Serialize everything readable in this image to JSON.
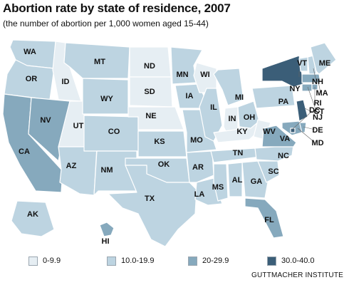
{
  "header": {
    "title": "Abortion rate by state of residence, 2007",
    "subtitle": "(the number of abortion per 1,000 women aged 15-44)"
  },
  "legend": [
    {
      "label": "0-9.9",
      "color": "#e6eef3"
    },
    {
      "label": "10.0-19.9",
      "color": "#bdd4e1"
    },
    {
      "label": "20-29.9",
      "color": "#86a9bd"
    },
    {
      "label": "30.0-40.0",
      "color": "#3b5e78"
    }
  ],
  "source": "GUTTMACHER INSTITUTE",
  "states": [
    {
      "code": "WA",
      "bin": 1
    },
    {
      "code": "OR",
      "bin": 1
    },
    {
      "code": "CA",
      "bin": 2
    },
    {
      "code": "NV",
      "bin": 2
    },
    {
      "code": "ID",
      "bin": 0
    },
    {
      "code": "UT",
      "bin": 0
    },
    {
      "code": "AZ",
      "bin": 1
    },
    {
      "code": "MT",
      "bin": 1
    },
    {
      "code": "WY",
      "bin": 1
    },
    {
      "code": "CO",
      "bin": 1
    },
    {
      "code": "NM",
      "bin": 1
    },
    {
      "code": "ND",
      "bin": 0
    },
    {
      "code": "SD",
      "bin": 0
    },
    {
      "code": "NE",
      "bin": 0
    },
    {
      "code": "KS",
      "bin": 1
    },
    {
      "code": "OK",
      "bin": 1
    },
    {
      "code": "TX",
      "bin": 1
    },
    {
      "code": "MN",
      "bin": 1
    },
    {
      "code": "IA",
      "bin": 1
    },
    {
      "code": "MO",
      "bin": 1
    },
    {
      "code": "AR",
      "bin": 1
    },
    {
      "code": "LA",
      "bin": 1
    },
    {
      "code": "WI",
      "bin": 0
    },
    {
      "code": "IL",
      "bin": 1
    },
    {
      "code": "MS",
      "bin": 1
    },
    {
      "code": "MI",
      "bin": 1
    },
    {
      "code": "IN",
      "bin": 0
    },
    {
      "code": "KY",
      "bin": 0
    },
    {
      "code": "TN",
      "bin": 1
    },
    {
      "code": "AL",
      "bin": 1
    },
    {
      "code": "OH",
      "bin": 1
    },
    {
      "code": "WV",
      "bin": 0
    },
    {
      "code": "GA",
      "bin": 1
    },
    {
      "code": "FL",
      "bin": 2
    },
    {
      "code": "SC",
      "bin": 1
    },
    {
      "code": "NC",
      "bin": 1
    },
    {
      "code": "VA",
      "bin": 2
    },
    {
      "code": "PA",
      "bin": 1
    },
    {
      "code": "NY",
      "bin": 3
    },
    {
      "code": "NJ",
      "bin": 3
    },
    {
      "code": "DE",
      "bin": 2
    },
    {
      "code": "MD",
      "bin": 2
    },
    {
      "code": "DC",
      "bin": 3
    },
    {
      "code": "VT",
      "bin": 1
    },
    {
      "code": "NH",
      "bin": 1
    },
    {
      "code": "ME",
      "bin": 1
    },
    {
      "code": "MA",
      "bin": 2
    },
    {
      "code": "CT",
      "bin": 2
    },
    {
      "code": "RI",
      "bin": 2
    },
    {
      "code": "AK",
      "bin": 1
    },
    {
      "code": "HI",
      "bin": 2
    }
  ]
}
